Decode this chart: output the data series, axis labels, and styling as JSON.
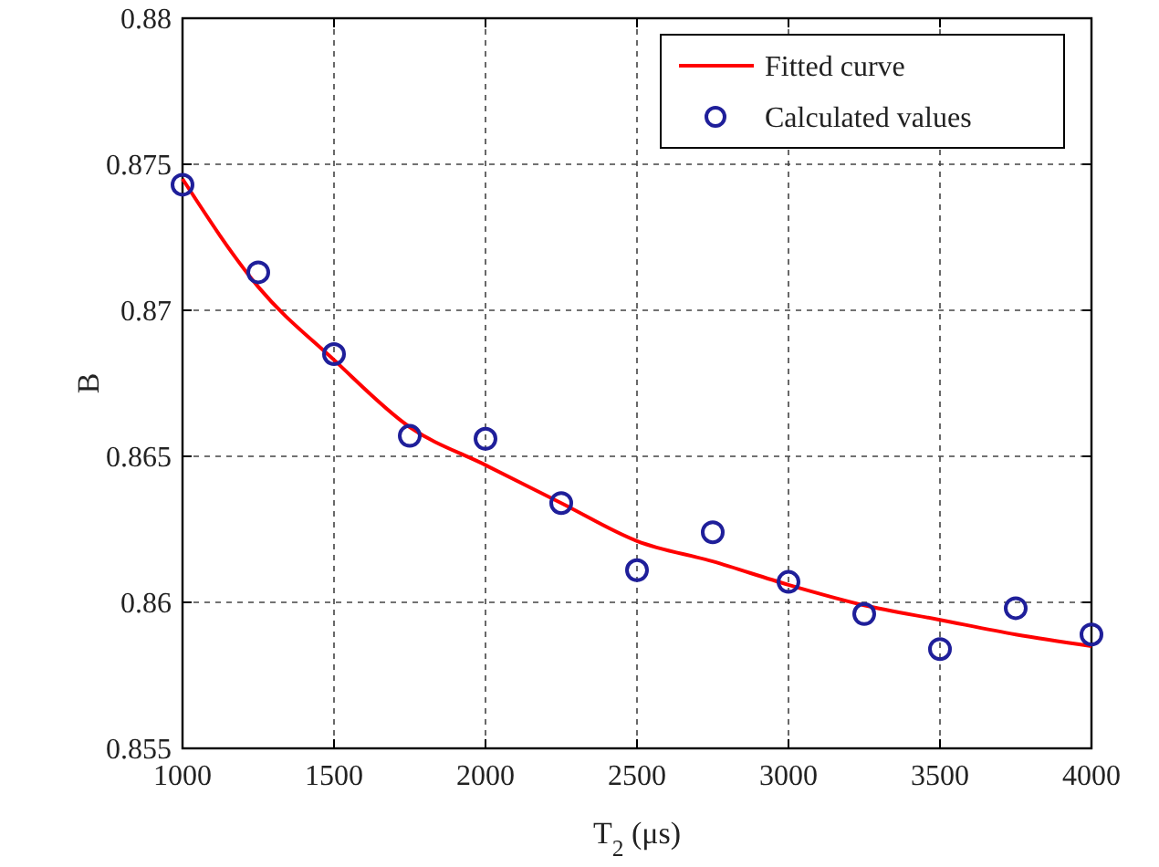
{
  "chart_data": {
    "type": "scatter",
    "xlabel": "T$_{2}$ (μs)",
    "ylabel": "B",
    "xlim": [
      1000,
      4000
    ],
    "xticks": [
      1000,
      1500,
      2000,
      2500,
      3000,
      3500,
      4000
    ],
    "ylim": [
      0.855,
      0.88
    ],
    "yticks": [
      0.855,
      0.86,
      0.865,
      0.87,
      0.875,
      0.88
    ],
    "grid": true,
    "legend": "top right",
    "series": [
      {
        "name": "Fitted curve",
        "type": "line",
        "color": "#ff0000",
        "marker": "none",
        "line_style": "solid",
        "x": [
          1000,
          1250,
          1500,
          1750,
          2000,
          2250,
          2500,
          2750,
          3000,
          3250,
          3500,
          3750,
          4000
        ],
        "values": [
          0.8745,
          0.8708,
          0.8683,
          0.866,
          0.8647,
          0.8634,
          0.8621,
          0.8614,
          0.8606,
          0.8599,
          0.8594,
          0.8589,
          0.8585
        ]
      },
      {
        "name": "Calculated values",
        "color": "#1f1f9a",
        "marker": "circle",
        "x": [
          1000,
          1250,
          1500,
          1750,
          2000,
          2250,
          2500,
          2750,
          3000,
          3250,
          3500,
          3750,
          4000
        ],
        "values": [
          0.8743,
          0.8713,
          0.8685,
          0.8657,
          0.8656,
          0.8634,
          0.8611,
          0.8624,
          0.8607,
          0.8596,
          0.8584,
          0.8598,
          0.8589
        ]
      }
    ]
  }
}
